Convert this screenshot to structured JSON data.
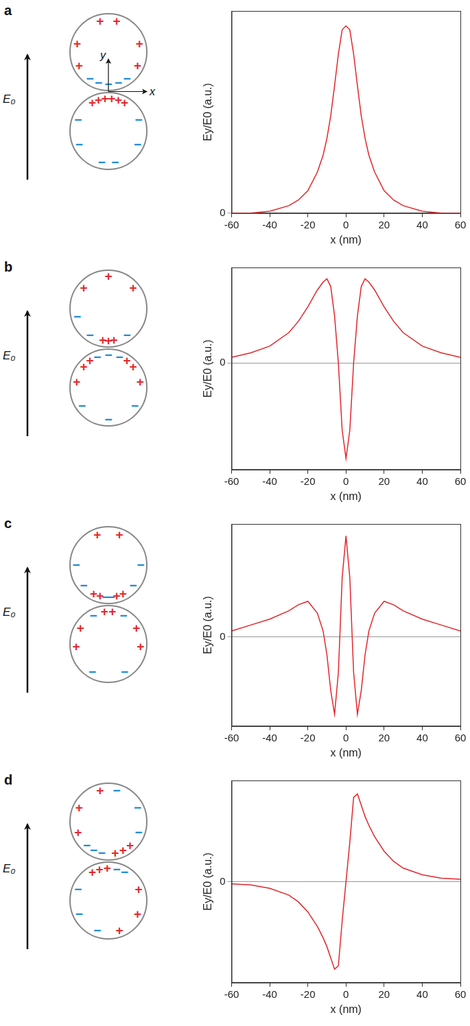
{
  "diagrams": [
    {
      "label": "a",
      "field_label": "E₀",
      "axis_labels": {
        "x": "x",
        "y": "y"
      },
      "top_particle": [
        {
          "sign": "+",
          "angle": 105
        },
        {
          "sign": "+",
          "angle": 75
        },
        {
          "sign": "+",
          "angle": 165
        },
        {
          "sign": "+",
          "angle": 15
        },
        {
          "sign": "+",
          "angle": 205
        },
        {
          "sign": "+",
          "angle": 335
        },
        {
          "sign": "−",
          "angle": 235
        },
        {
          "sign": "−",
          "angle": 252
        },
        {
          "sign": "−",
          "angle": 270
        },
        {
          "sign": "−",
          "angle": 288
        },
        {
          "sign": "−",
          "angle": 305
        }
      ],
      "bottom_particle": [
        {
          "sign": "+",
          "angle": 60
        },
        {
          "sign": "+",
          "angle": 72
        },
        {
          "sign": "+",
          "angle": 84
        },
        {
          "sign": "+",
          "angle": 96
        },
        {
          "sign": "+",
          "angle": 108
        },
        {
          "sign": "+",
          "angle": 120
        },
        {
          "sign": "−",
          "angle": 160
        },
        {
          "sign": "−",
          "angle": 20
        },
        {
          "sign": "−",
          "angle": 205
        },
        {
          "sign": "−",
          "angle": 335
        },
        {
          "sign": "−",
          "angle": 258
        },
        {
          "sign": "−",
          "angle": 282
        }
      ]
    },
    {
      "label": "b",
      "field_label": "E₀",
      "top_particle": [
        {
          "sign": "+",
          "angle": 90
        },
        {
          "sign": "+",
          "angle": 140
        },
        {
          "sign": "+",
          "angle": 40
        },
        {
          "sign": "−",
          "angle": 195
        },
        {
          "sign": "−",
          "angle": 235
        },
        {
          "sign": "−",
          "angle": 305
        },
        {
          "sign": "+",
          "angle": 260
        },
        {
          "sign": "+",
          "angle": 270
        },
        {
          "sign": "+",
          "angle": 280
        }
      ],
      "bottom_particle": [
        {
          "sign": "−",
          "angle": 90
        },
        {
          "sign": "−",
          "angle": 70
        },
        {
          "sign": "−",
          "angle": 110
        },
        {
          "sign": "+",
          "angle": 55
        },
        {
          "sign": "+",
          "angle": 125
        },
        {
          "sign": "+",
          "angle": 140
        },
        {
          "sign": "+",
          "angle": 40
        },
        {
          "sign": "+",
          "angle": 170
        },
        {
          "sign": "+",
          "angle": 10
        },
        {
          "sign": "−",
          "angle": 215
        },
        {
          "sign": "−",
          "angle": 325
        },
        {
          "sign": "−",
          "angle": 270
        }
      ]
    },
    {
      "label": "c",
      "field_label": "E₀",
      "top_particle": [
        {
          "sign": "+",
          "angle": 110
        },
        {
          "sign": "+",
          "angle": 70
        },
        {
          "sign": "−",
          "angle": 180
        },
        {
          "sign": "−",
          "angle": 0
        },
        {
          "sign": "−",
          "angle": 220
        },
        {
          "sign": "−",
          "angle": 320
        },
        {
          "sign": "+",
          "angle": 243
        },
        {
          "sign": "+",
          "angle": 255
        },
        {
          "sign": "+",
          "angle": 285
        },
        {
          "sign": "+",
          "angle": 297
        },
        {
          "sign": "−",
          "angle": 265
        },
        {
          "sign": "−",
          "angle": 275
        }
      ],
      "bottom_particle": [
        {
          "sign": "−",
          "angle": 118
        },
        {
          "sign": "−",
          "angle": 62
        },
        {
          "sign": "+",
          "angle": 97
        },
        {
          "sign": "+",
          "angle": 83
        },
        {
          "sign": "+",
          "angle": 150
        },
        {
          "sign": "+",
          "angle": 30
        },
        {
          "sign": "+",
          "angle": 185
        },
        {
          "sign": "+",
          "angle": 355
        },
        {
          "sign": "−",
          "angle": 240
        },
        {
          "sign": "−",
          "angle": 300
        }
      ]
    },
    {
      "label": "d",
      "field_label": "E₀",
      "top_particle": [
        {
          "sign": "+",
          "angle": 105
        },
        {
          "sign": "+",
          "angle": 155
        },
        {
          "sign": "+",
          "angle": 200
        },
        {
          "sign": "−",
          "angle": 75
        },
        {
          "sign": "−",
          "angle": 25
        },
        {
          "sign": "−",
          "angle": 340
        },
        {
          "sign": "−",
          "angle": 228
        },
        {
          "sign": "−",
          "angle": 243
        },
        {
          "sign": "−",
          "angle": 258
        },
        {
          "sign": "+",
          "angle": 282
        },
        {
          "sign": "+",
          "angle": 297
        },
        {
          "sign": "+",
          "angle": 312
        }
      ],
      "bottom_particle": [
        {
          "sign": "+",
          "angle": 120
        },
        {
          "sign": "+",
          "angle": 106
        },
        {
          "sign": "+",
          "angle": 92
        },
        {
          "sign": "−",
          "angle": 75
        },
        {
          "sign": "−",
          "angle": 60
        },
        {
          "sign": "−",
          "angle": 160
        },
        {
          "sign": "−",
          "angle": 205
        },
        {
          "sign": "+",
          "angle": 20
        },
        {
          "sign": "+",
          "angle": 335
        },
        {
          "sign": "−",
          "angle": 250
        },
        {
          "sign": "+",
          "angle": 290
        }
      ]
    }
  ],
  "chart_data": [
    {
      "type": "line",
      "x_label": "x (nm)",
      "y_label": "Ey/E0 (a.u.)",
      "x": [
        -60,
        -50,
        -40,
        -30,
        -25,
        -20,
        -15,
        -12,
        -10,
        -8,
        -6,
        -4,
        -2,
        0,
        2,
        4,
        6,
        8,
        10,
        12,
        15,
        20,
        25,
        30,
        40,
        50,
        60
      ],
      "series": [
        {
          "color": "#e3262b",
          "values": [
            0,
            0,
            0.01,
            0.04,
            0.07,
            0.12,
            0.22,
            0.31,
            0.4,
            0.52,
            0.68,
            0.85,
            0.98,
            1.0,
            0.98,
            0.85,
            0.68,
            0.52,
            0.4,
            0.31,
            0.22,
            0.12,
            0.07,
            0.04,
            0.01,
            0,
            0
          ]
        }
      ],
      "xlim": [
        -60,
        60
      ],
      "xticks": [
        -60,
        -40,
        -20,
        0,
        20,
        40,
        60
      ],
      "ylim": [
        0,
        1.08
      ],
      "yticks": [
        0
      ],
      "grid": true
    },
    {
      "type": "line",
      "x_label": "x (nm)",
      "y_label": "Ey/E0 (a.u.)",
      "x": [
        -60,
        -50,
        -40,
        -30,
        -25,
        -20,
        -15,
        -12,
        -10,
        -8,
        -6,
        -4,
        -2,
        0,
        2,
        4,
        6,
        8,
        10,
        12,
        15,
        20,
        25,
        30,
        40,
        50,
        60
      ],
      "series": [
        {
          "color": "#e3262b",
          "values": [
            0.05,
            0.09,
            0.15,
            0.27,
            0.37,
            0.5,
            0.65,
            0.72,
            0.75,
            0.68,
            0.42,
            0.0,
            -0.6,
            -0.85,
            -0.6,
            0.0,
            0.42,
            0.68,
            0.75,
            0.72,
            0.65,
            0.5,
            0.37,
            0.27,
            0.15,
            0.09,
            0.05
          ]
        }
      ],
      "xlim": [
        -60,
        60
      ],
      "xticks": [
        -60,
        -40,
        -20,
        0,
        20,
        40,
        60
      ],
      "ylim": [
        -0.95,
        0.85
      ],
      "yticks": [
        0
      ],
      "grid": true
    },
    {
      "type": "line",
      "x_label": "x (nm)",
      "y_label": "Ey/E0 (a.u.)",
      "x": [
        -60,
        -50,
        -40,
        -30,
        -25,
        -20,
        -15,
        -12,
        -10,
        -8,
        -6,
        -4,
        -2,
        0,
        2,
        4,
        6,
        8,
        10,
        12,
        15,
        20,
        25,
        30,
        40,
        50,
        60
      ],
      "series": [
        {
          "color": "#e3262b",
          "values": [
            0.05,
            0.1,
            0.15,
            0.22,
            0.27,
            0.3,
            0.2,
            0.05,
            -0.15,
            -0.45,
            -0.65,
            -0.3,
            0.5,
            0.85,
            0.5,
            -0.3,
            -0.65,
            -0.45,
            -0.15,
            0.05,
            0.2,
            0.3,
            0.27,
            0.22,
            0.15,
            0.1,
            0.05
          ]
        }
      ],
      "xlim": [
        -60,
        60
      ],
      "xticks": [
        -60,
        -40,
        -20,
        0,
        20,
        40,
        60
      ],
      "ylim": [
        -0.75,
        0.95
      ],
      "yticks": [
        0
      ],
      "grid": true
    },
    {
      "type": "line",
      "x_label": "x (nm)",
      "y_label": "Ey/E0 (a.u.)",
      "x": [
        -60,
        -50,
        -40,
        -30,
        -25,
        -20,
        -15,
        -12,
        -10,
        -8,
        -6,
        -4,
        -2,
        0,
        2,
        4,
        6,
        8,
        10,
        12,
        15,
        20,
        25,
        30,
        40,
        50,
        60
      ],
      "series": [
        {
          "color": "#e3262b",
          "values": [
            -0.02,
            -0.03,
            -0.06,
            -0.12,
            -0.18,
            -0.27,
            -0.4,
            -0.5,
            -0.58,
            -0.68,
            -0.78,
            -0.75,
            -0.35,
            0,
            0.35,
            0.75,
            0.78,
            0.68,
            0.58,
            0.5,
            0.4,
            0.27,
            0.18,
            0.12,
            0.06,
            0.03,
            0.02
          ]
        }
      ],
      "xlim": [
        -60,
        60
      ],
      "xticks": [
        -60,
        -40,
        -20,
        0,
        20,
        40,
        60
      ],
      "ylim": [
        -0.9,
        0.9
      ],
      "yticks": [
        0
      ],
      "grid": true
    }
  ]
}
